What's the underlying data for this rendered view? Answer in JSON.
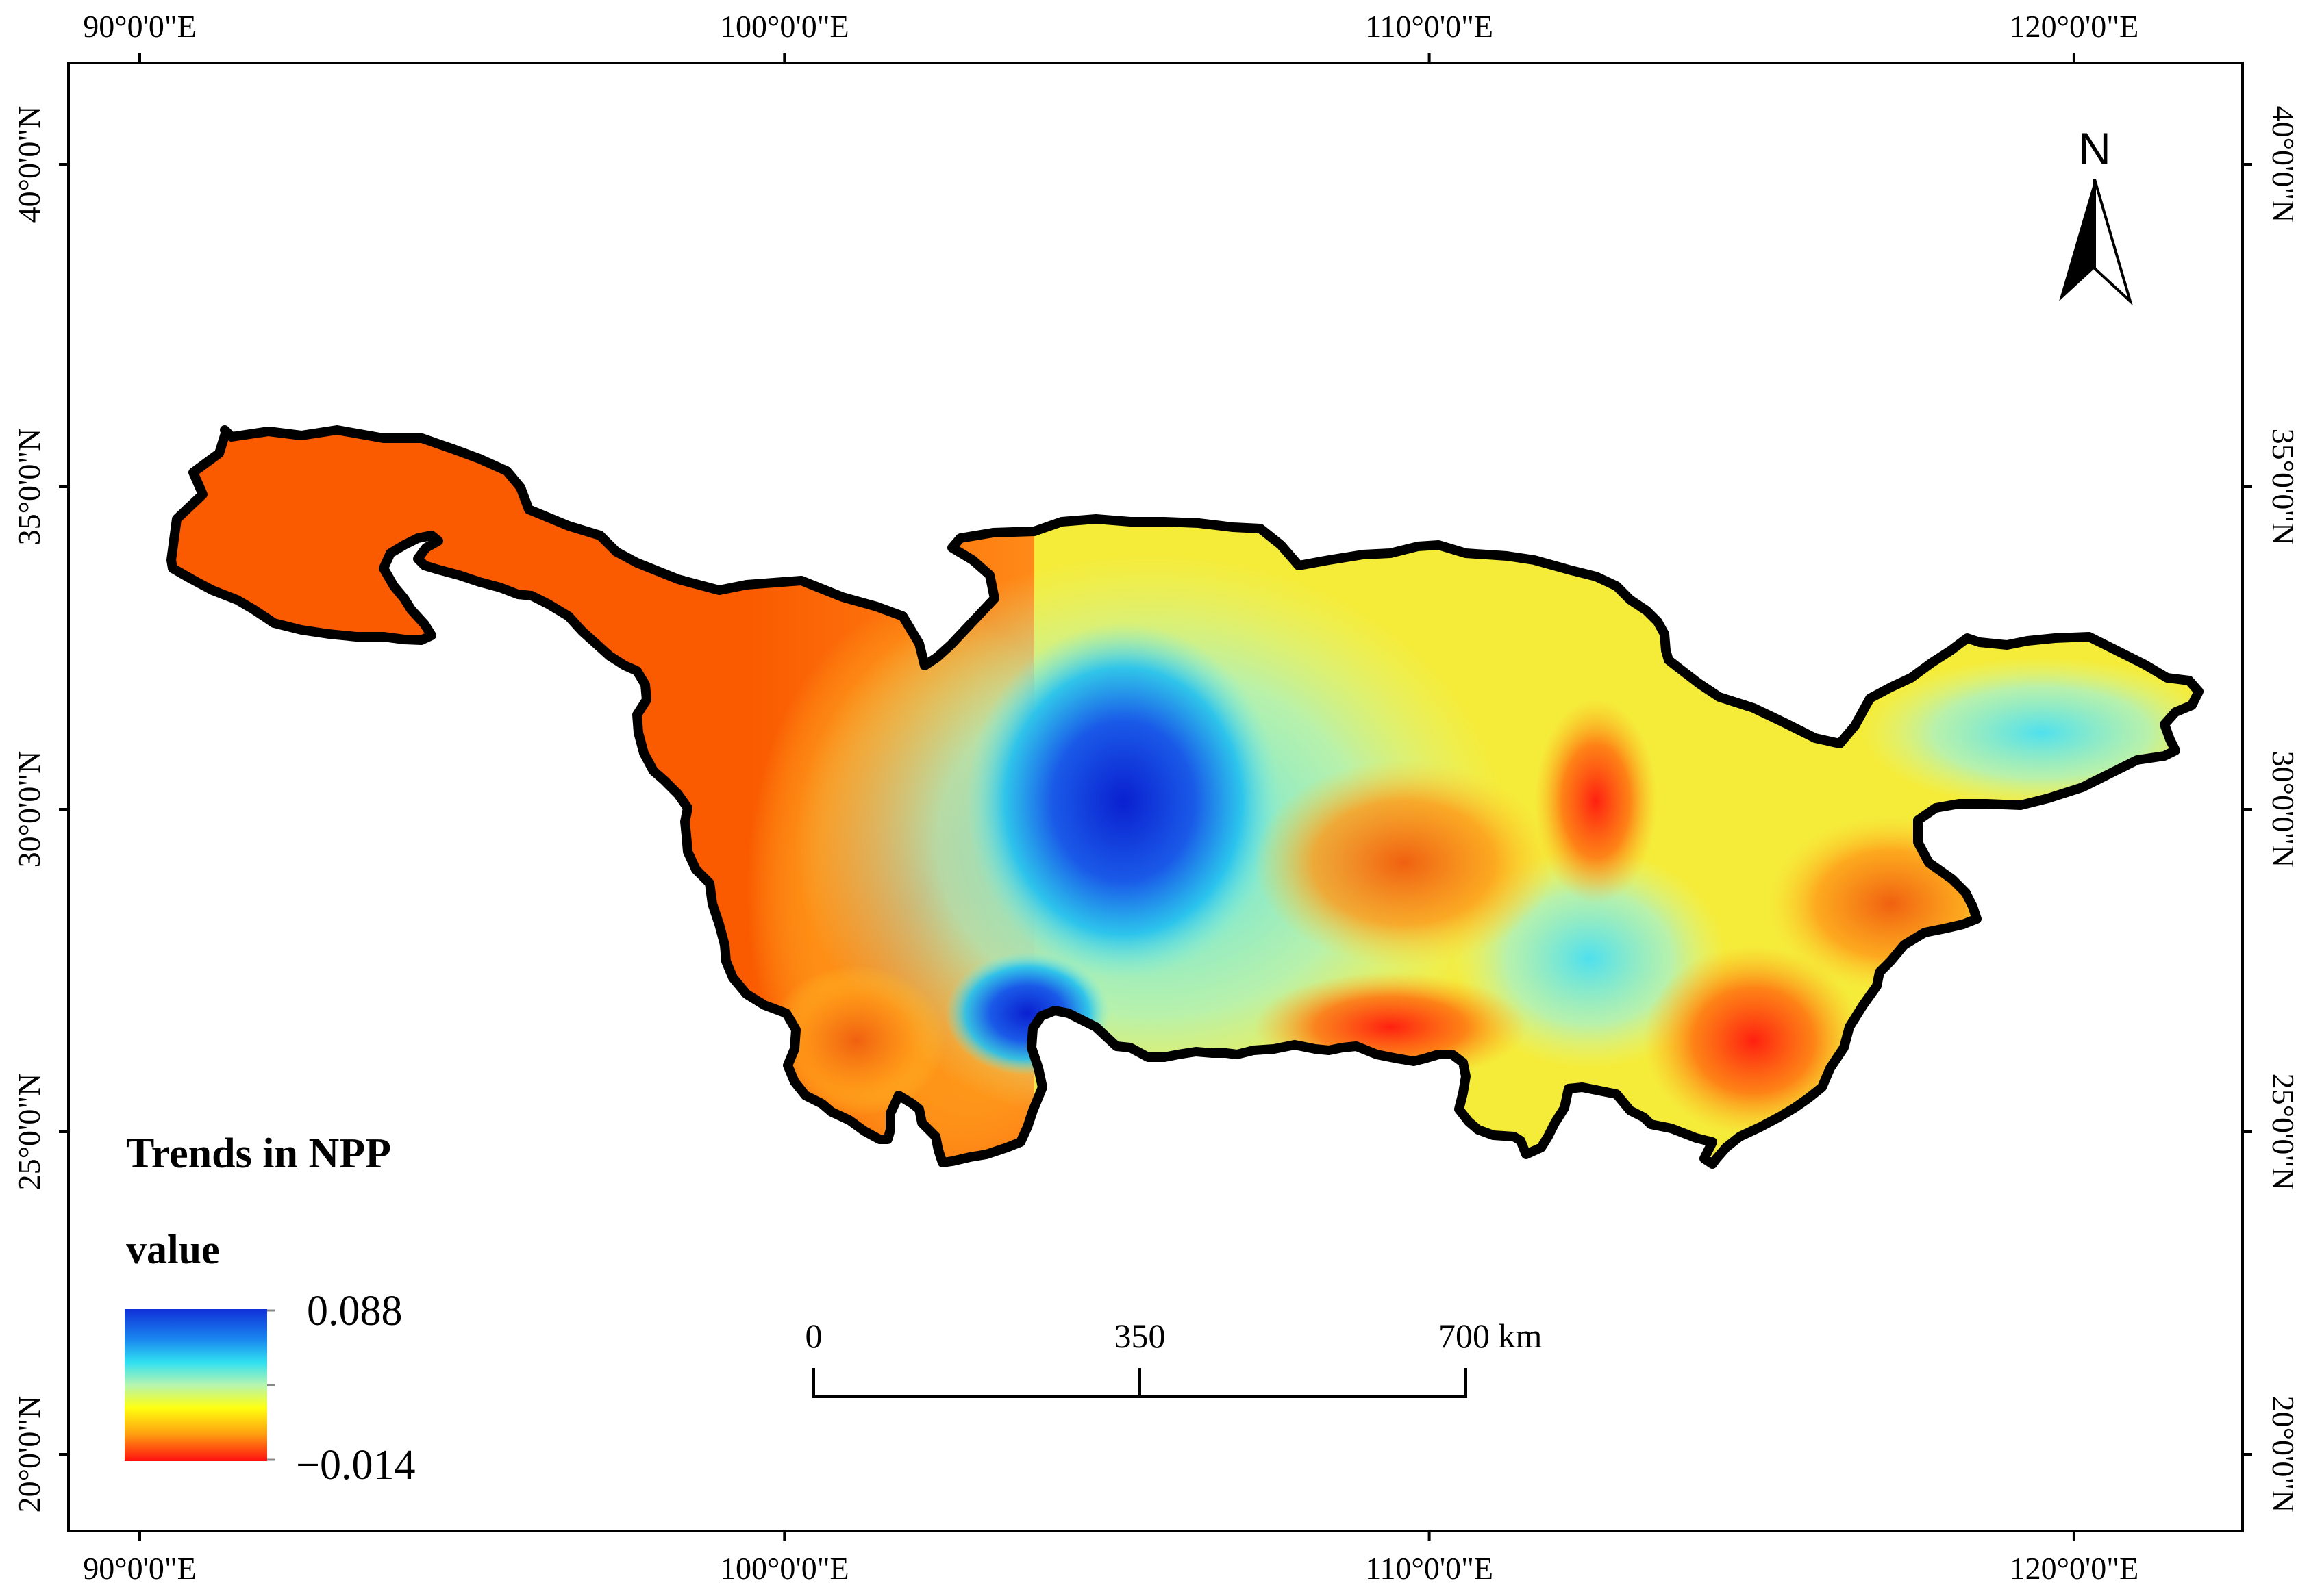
{
  "map": {
    "top_lon_labels": [
      "90°0'0\"E",
      "100°0'0\"E",
      "110°0'0\"E",
      "120°0'0\"E"
    ],
    "bottom_lon_labels": [
      "90°0'0\"E",
      "100°0'0\"E",
      "110°0'0\"E",
      "120°0'0\"E"
    ],
    "left_lat_labels": [
      "40°0'0\"N",
      "35°0'0\"N",
      "30°0'0\"N",
      "25°0'0\"N",
      "20°0'0\"N"
    ],
    "right_lat_labels": [
      "40°0'0\"N",
      "35°0'0\"N",
      "30°0'0\"N",
      "25°0'0\"N",
      "20°0'0\"N"
    ],
    "longitudes": [
      90,
      100,
      110,
      120
    ],
    "latitudes": [
      40,
      35,
      30,
      25,
      20
    ]
  },
  "north_arrow": {
    "label": "N"
  },
  "scale_bar": {
    "labels": [
      "0",
      "350",
      "700 km"
    ]
  },
  "legend": {
    "title": "Trends in NPP",
    "subtitle": "value",
    "max_label": "0.088",
    "min_label": "−0.014",
    "colors": [
      "#1030d8",
      "#25c8f0",
      "#a6f0c6",
      "#ffff10",
      "#ff9a10",
      "#ff1010"
    ]
  },
  "colors": {
    "boundary": "#000000",
    "west_orange": "#fa5a00",
    "east_yellow": "#f5ec3a",
    "blue_core": "#1e3ae0"
  }
}
